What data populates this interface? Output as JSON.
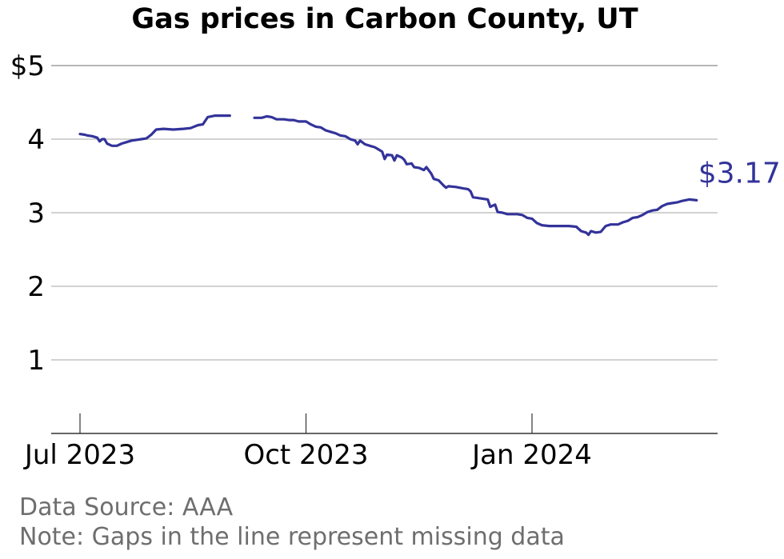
{
  "chart_data": {
    "type": "line",
    "title": "Gas prices in Carbon County, UT",
    "xlabel": "",
    "ylabel": "",
    "ylim": [
      0,
      5
    ],
    "yticks": [
      1,
      2,
      3,
      4,
      5
    ],
    "ytick_labels": [
      "1",
      "2",
      "3",
      "4",
      "$5"
    ],
    "xlim": [
      "2023-06-23",
      "2024-04-08"
    ],
    "xticks": [
      "2023-07-01",
      "2023-10-01",
      "2024-01-01"
    ],
    "xtick_labels": [
      "Jul 2023",
      "Oct 2023",
      "Jan 2024"
    ],
    "grid": true,
    "line_color": "#33339a",
    "series": [
      {
        "values": [
          [
            "2023-07-01",
            4.07
          ],
          [
            "2023-07-03",
            4.06
          ],
          [
            "2023-07-04",
            4.05
          ],
          [
            "2023-07-06",
            4.04
          ],
          [
            "2023-07-08",
            4.02
          ],
          [
            "2023-07-09",
            3.97
          ],
          [
            "2023-07-10",
            4.0
          ],
          [
            "2023-07-11",
            4.0
          ],
          [
            "2023-07-12",
            3.94
          ],
          [
            "2023-07-14",
            3.91
          ],
          [
            "2023-07-16",
            3.91
          ],
          [
            "2023-07-18",
            3.94
          ],
          [
            "2023-07-20",
            3.96
          ],
          [
            "2023-07-22",
            3.98
          ],
          [
            "2023-07-24",
            3.99
          ],
          [
            "2023-07-26",
            4.0
          ],
          [
            "2023-07-28",
            4.01
          ],
          [
            "2023-07-30",
            4.06
          ],
          [
            "2023-08-01",
            4.13
          ],
          [
            "2023-08-04",
            4.14
          ],
          [
            "2023-08-08",
            4.13
          ],
          [
            "2023-08-12",
            4.14
          ],
          [
            "2023-08-15",
            4.15
          ],
          [
            "2023-08-18",
            4.19
          ],
          [
            "2023-08-20",
            4.2
          ],
          [
            "2023-08-22",
            4.3
          ],
          [
            "2023-08-25",
            4.32
          ],
          [
            "2023-08-31",
            4.32
          ]
        ]
      },
      {
        "values": [
          [
            "2023-09-10",
            4.29
          ],
          [
            "2023-09-13",
            4.29
          ],
          [
            "2023-09-15",
            4.31
          ],
          [
            "2023-09-17",
            4.3
          ],
          [
            "2023-09-19",
            4.27
          ],
          [
            "2023-09-22",
            4.27
          ],
          [
            "2023-09-24",
            4.26
          ],
          [
            "2023-09-26",
            4.26
          ],
          [
            "2023-09-28",
            4.24
          ],
          [
            "2023-10-01",
            4.24
          ],
          [
            "2023-10-03",
            4.2
          ],
          [
            "2023-10-05",
            4.17
          ],
          [
            "2023-10-07",
            4.16
          ],
          [
            "2023-10-09",
            4.12
          ],
          [
            "2023-10-11",
            4.1
          ],
          [
            "2023-10-13",
            4.08
          ],
          [
            "2023-10-15",
            4.05
          ],
          [
            "2023-10-17",
            4.04
          ],
          [
            "2023-10-19",
            4.0
          ],
          [
            "2023-10-21",
            3.98
          ],
          [
            "2023-10-22",
            3.93
          ],
          [
            "2023-10-23",
            3.98
          ],
          [
            "2023-10-25",
            3.93
          ],
          [
            "2023-10-27",
            3.91
          ],
          [
            "2023-10-29",
            3.89
          ],
          [
            "2023-10-31",
            3.85
          ],
          [
            "2023-11-01",
            3.83
          ],
          [
            "2023-11-02",
            3.73
          ],
          [
            "2023-11-03",
            3.79
          ],
          [
            "2023-11-05",
            3.78
          ],
          [
            "2023-11-06",
            3.71
          ],
          [
            "2023-11-07",
            3.78
          ],
          [
            "2023-11-09",
            3.75
          ],
          [
            "2023-11-10",
            3.72
          ],
          [
            "2023-11-11",
            3.66
          ],
          [
            "2023-11-13",
            3.67
          ],
          [
            "2023-11-14",
            3.62
          ],
          [
            "2023-11-16",
            3.61
          ],
          [
            "2023-11-18",
            3.58
          ],
          [
            "2023-11-19",
            3.62
          ],
          [
            "2023-11-21",
            3.53
          ],
          [
            "2023-11-22",
            3.46
          ],
          [
            "2023-11-24",
            3.44
          ],
          [
            "2023-11-26",
            3.37
          ],
          [
            "2023-11-27",
            3.34
          ],
          [
            "2023-11-28",
            3.36
          ],
          [
            "2023-12-01",
            3.35
          ],
          [
            "2023-12-04",
            3.33
          ],
          [
            "2023-12-06",
            3.32
          ],
          [
            "2023-12-07",
            3.29
          ],
          [
            "2023-12-08",
            3.21
          ],
          [
            "2023-12-10",
            3.2
          ],
          [
            "2023-12-14",
            3.18
          ],
          [
            "2023-12-15",
            3.08
          ],
          [
            "2023-12-17",
            3.11
          ],
          [
            "2023-12-18",
            3.01
          ],
          [
            "2023-12-20",
            3.0
          ],
          [
            "2023-12-22",
            2.98
          ],
          [
            "2023-12-26",
            2.98
          ],
          [
            "2023-12-28",
            2.97
          ],
          [
            "2023-12-30",
            2.93
          ],
          [
            "2024-01-01",
            2.92
          ],
          [
            "2024-01-03",
            2.86
          ],
          [
            "2024-01-05",
            2.83
          ],
          [
            "2024-01-08",
            2.82
          ],
          [
            "2024-01-12",
            2.82
          ],
          [
            "2024-01-16",
            2.82
          ],
          [
            "2024-01-19",
            2.81
          ],
          [
            "2024-01-21",
            2.75
          ],
          [
            "2024-01-23",
            2.73
          ],
          [
            "2024-01-24",
            2.7
          ],
          [
            "2024-01-25",
            2.75
          ],
          [
            "2024-01-27",
            2.73
          ],
          [
            "2024-01-29",
            2.74
          ],
          [
            "2024-01-31",
            2.82
          ],
          [
            "2024-02-02",
            2.84
          ],
          [
            "2024-02-05",
            2.84
          ],
          [
            "2024-02-07",
            2.87
          ],
          [
            "2024-02-09",
            2.89
          ],
          [
            "2024-02-11",
            2.93
          ],
          [
            "2024-02-13",
            2.94
          ],
          [
            "2024-02-15",
            2.97
          ],
          [
            "2024-02-17",
            3.01
          ],
          [
            "2024-02-19",
            3.03
          ],
          [
            "2024-02-21",
            3.04
          ],
          [
            "2024-02-23",
            3.09
          ],
          [
            "2024-02-25",
            3.12
          ],
          [
            "2024-02-27",
            3.13
          ],
          [
            "2024-02-29",
            3.14
          ],
          [
            "2024-03-02",
            3.16
          ],
          [
            "2024-03-05",
            3.18
          ],
          [
            "2024-03-08",
            3.17
          ]
        ]
      }
    ],
    "end_label": "$3.17",
    "annotations": [
      "Data Source: AAA",
      "Note: Gaps in the line represent missing data"
    ]
  }
}
